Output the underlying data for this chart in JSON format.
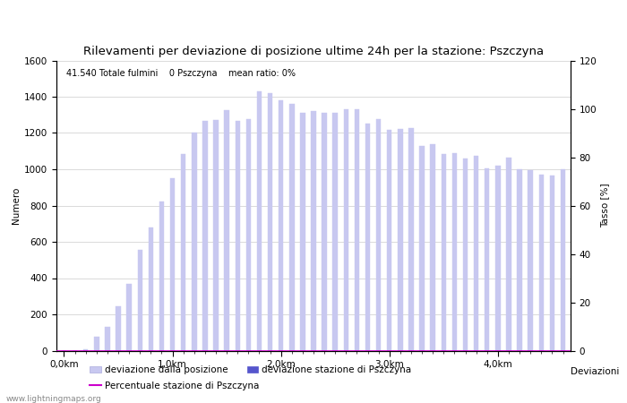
{
  "title": "Rilevamenti per deviazione di posizione ultime 24h per la stazione: Pszczyna",
  "subtitle": "41.540 Totale fulmini    0 Pszczyna    mean ratio: 0%",
  "xlabel": "Deviazioni",
  "ylabel_left": "Numero",
  "ylabel_right": "Tasso [%]",
  "watermark": "www.lightningmaps.org",
  "ylim_left": [
    0,
    1600
  ],
  "ylim_right": [
    0,
    120
  ],
  "yticks_left": [
    0,
    200,
    400,
    600,
    800,
    1000,
    1200,
    1400,
    1600
  ],
  "yticks_right": [
    0,
    20,
    40,
    60,
    80,
    100,
    120
  ],
  "bar_values": [
    0,
    0,
    5,
    75,
    130,
    245,
    370,
    555,
    680,
    820,
    950,
    1085,
    1200,
    1265,
    1270,
    1325,
    1265,
    1275,
    1430,
    1420,
    1380,
    1360,
    1310,
    1320,
    1310,
    1310,
    1330,
    1330,
    1250,
    1275,
    1215,
    1220,
    1225,
    1130,
    1140,
    1085,
    1090,
    1060,
    1075,
    1005,
    1020,
    1065,
    1000,
    995,
    970,
    965,
    1000
  ],
  "station_values": [
    0,
    0,
    0,
    0,
    0,
    0,
    0,
    0,
    0,
    0,
    0,
    0,
    0,
    0,
    0,
    0,
    0,
    0,
    0,
    0,
    0,
    0,
    0,
    0,
    0,
    0,
    0,
    0,
    0,
    0,
    0,
    0,
    0,
    0,
    0,
    0,
    0,
    0,
    0,
    0,
    0,
    0,
    0,
    0,
    0,
    0,
    0
  ],
  "bar_color_light": "#c8c8f0",
  "bar_color_dark": "#5555cc",
  "mean_ratio_line": 0,
  "legend_light": "deviazione dalla posizione",
  "legend_dark": "deviazione stazione di Pszczyna",
  "legend_line": "Percentuale stazione di Pszczyna",
  "line_color": "#cc00cc",
  "bg_color": "#ffffff",
  "plot_bg_color": "#ffffff",
  "grid_color": "#cccccc",
  "title_fontsize": 9.5,
  "axis_fontsize": 7.5,
  "tick_fontsize": 7.5,
  "bar_width": 0.45,
  "n_bars": 47,
  "x_major_ticks": [
    0,
    10,
    20,
    30,
    40
  ],
  "x_major_labels": [
    "0,0km",
    "1,0km",
    "2,0km",
    "3,0km",
    "4,0km"
  ]
}
